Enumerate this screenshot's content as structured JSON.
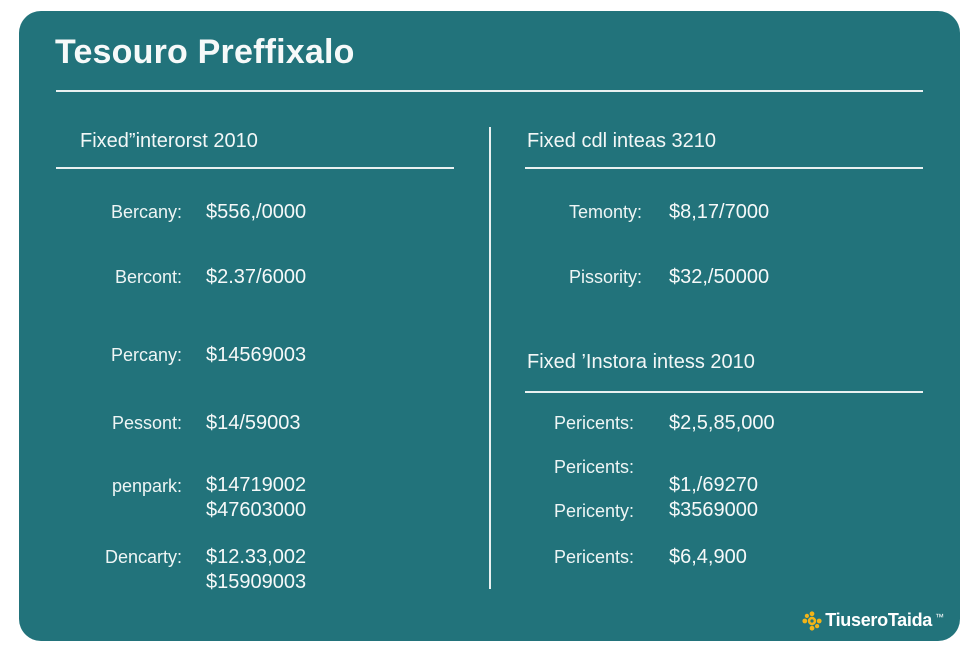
{
  "title": "Tesouro Preffixalo",
  "left_panel": {
    "heading": "Fixed”interorst 2010",
    "rows": [
      {
        "label": "Bercany:",
        "values": [
          "$556,/0000"
        ]
      },
      {
        "label": "Bercont:",
        "values": [
          "$2.37/6000"
        ]
      },
      {
        "label": "Percany:",
        "values": [
          "$14569003"
        ]
      },
      {
        "label": "Pessont:",
        "values": [
          "$14/59003"
        ]
      },
      {
        "label": "penpark:",
        "values": [
          "$14719002",
          "$47603000"
        ]
      },
      {
        "label": "Dencarty:",
        "values": [
          "$12.33,002",
          "$15909003"
        ]
      }
    ]
  },
  "right_panel_top": {
    "heading": "Fixed cdl inteas 3210",
    "rows": [
      {
        "label": "Temonty:",
        "values": [
          "$8,17/7000"
        ]
      },
      {
        "label": "Pissority:",
        "values": [
          "$32,/50000"
        ]
      }
    ]
  },
  "right_panel_bottom": {
    "heading": "Fixed ’Instora intess 2010",
    "rows": [
      {
        "label": "Pericents:",
        "values": [
          "$2,5,85,000"
        ]
      },
      {
        "label": "Pericents:",
        "values": []
      },
      {
        "label": "Pericenty:",
        "values": [
          "$1,/69270",
          "$3569000"
        ]
      },
      {
        "label": "Pericents:",
        "values": [
          "$6,4,900"
        ]
      }
    ]
  },
  "brand": {
    "name": "TiuseroTaida",
    "trademark": "™",
    "logo_icon": "gear-dots-icon",
    "logo_color": "#f2b417"
  },
  "colors": {
    "card_background": "#22737b",
    "text": "#f3f7f7",
    "rules": "#e9f1f1"
  }
}
